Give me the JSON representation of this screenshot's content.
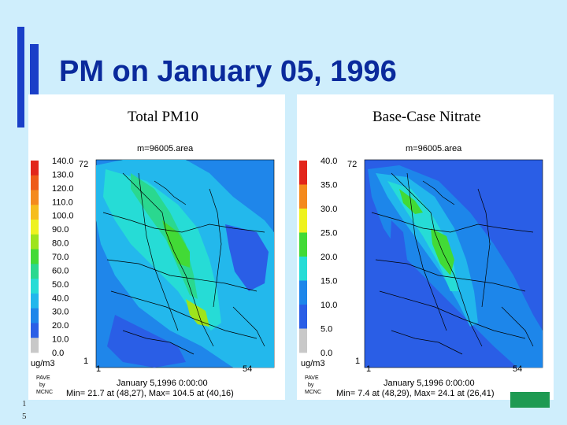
{
  "slide": {
    "title": "PM on January 05, 1996",
    "number_line1": "1",
    "number_line2": "5"
  },
  "panels": [
    {
      "title": "Total PM10",
      "area_label": "m=96005.area",
      "legend": [
        "140.0",
        "130.0",
        "120.0",
        "110.0",
        "100.0",
        "90.0",
        "80.0",
        "70.0",
        "60.0",
        "50.0",
        "40.0",
        "30.0",
        "20.0",
        "10.0",
        "0.0"
      ],
      "legend_colors": [
        "#e2261b",
        "#ee5a18",
        "#f48a1d",
        "#f6bd1d",
        "#eef21f",
        "#9ee41c",
        "#42da36",
        "#2ad88f",
        "#26dcd6",
        "#21b7ec",
        "#1d86ea",
        "#2a5ee6",
        "#c8c8c8"
      ],
      "units": "ug/m3",
      "axis_top_left": "72",
      "axis_y_bottom": "1",
      "axis_x_left": "1",
      "axis_x_right": "54",
      "date": "January 5,1996 0:00:00",
      "pave_line1": "PAVE",
      "pave_line2": "by",
      "pave_line3": "MCNC",
      "min_max": "Min=   21.7 at (48,27), Max=   104.5 at (40,16)"
    },
    {
      "title": "Base-Case Nitrate",
      "area_label": "m=96005.area",
      "legend": [
        "40.0",
        "35.0",
        "30.0",
        "25.0",
        "20.0",
        "15.0",
        "10.0",
        "5.0",
        "0.0"
      ],
      "legend_colors": [
        "#e2261b",
        "#f48a1d",
        "#eef21f",
        "#42da36",
        "#26dcd6",
        "#1d86ea",
        "#2a5ee6",
        "#c8c8c8"
      ],
      "units": "ug/m3",
      "axis_top_left": "72",
      "axis_y_bottom": "1",
      "axis_x_left": "1",
      "axis_x_right": "54",
      "date": "January 5,1996 0:00:00",
      "pave_line1": "PAVE",
      "pave_line2": "by",
      "pave_line3": "MCNC",
      "min_max": "Min=    7.4 at (48,29), Max=    24.1 at (26,41)"
    }
  ]
}
